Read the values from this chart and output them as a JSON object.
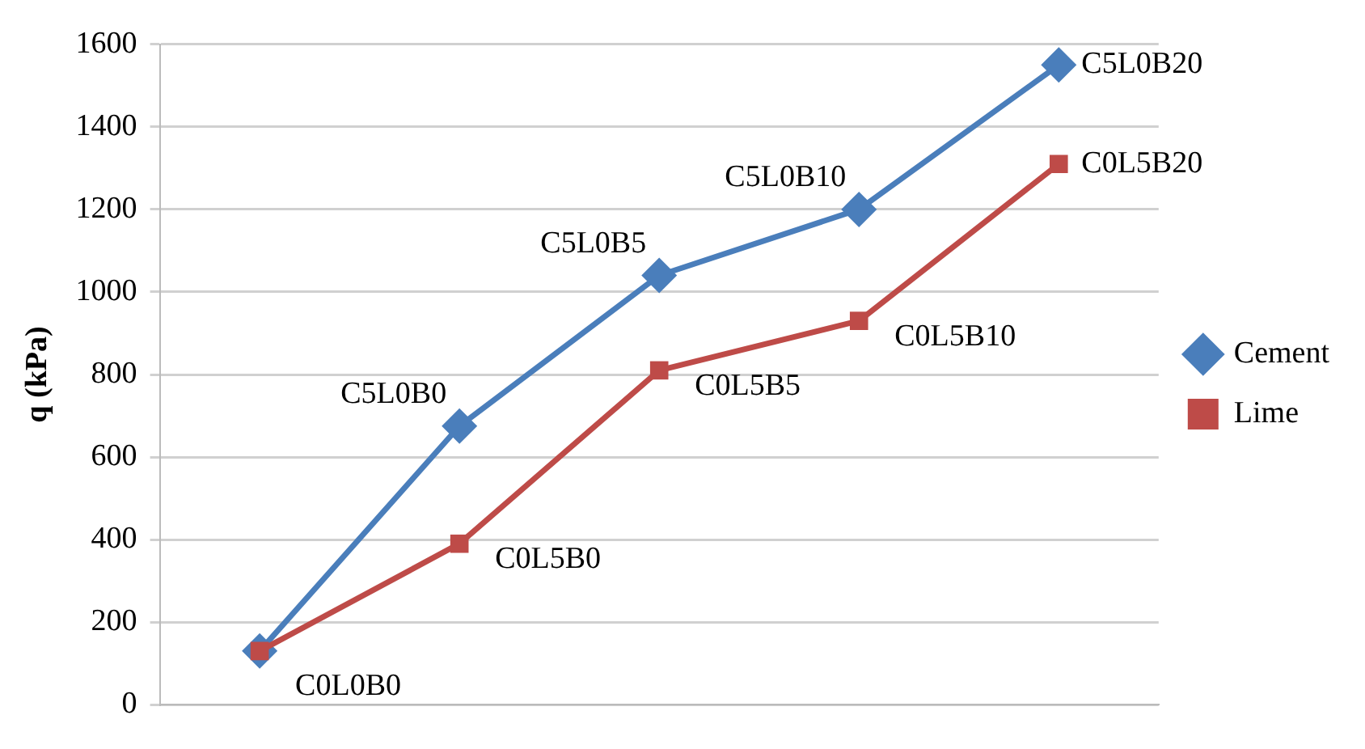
{
  "chart_data": {
    "type": "line",
    "ylabel": "q (kPa)",
    "categories": [
      null,
      null,
      null,
      null,
      null
    ],
    "series": [
      {
        "name": "Cement",
        "color": "#4a7ebb",
        "marker": "diamond",
        "values": [
          130,
          675,
          1040,
          1200,
          1550
        ],
        "value_labels": [
          null,
          "C5L0B0",
          "C5L0B5",
          "C5L0B10",
          "C5L0B20"
        ]
      },
      {
        "name": "Lime",
        "color": "#be4b48",
        "marker": "square",
        "values": [
          130,
          390,
          810,
          930,
          1310
        ],
        "value_labels": [
          "C0L0B0",
          "C0L5B0",
          "C0L5B5",
          "C0L5B10",
          "C0L5B20"
        ]
      }
    ],
    "ylim": [
      0,
      1600
    ],
    "yticks": [
      0,
      200,
      400,
      600,
      800,
      1000,
      1200,
      1400,
      1600
    ],
    "grid": "y",
    "legend": "right",
    "tick_labels": "y"
  }
}
